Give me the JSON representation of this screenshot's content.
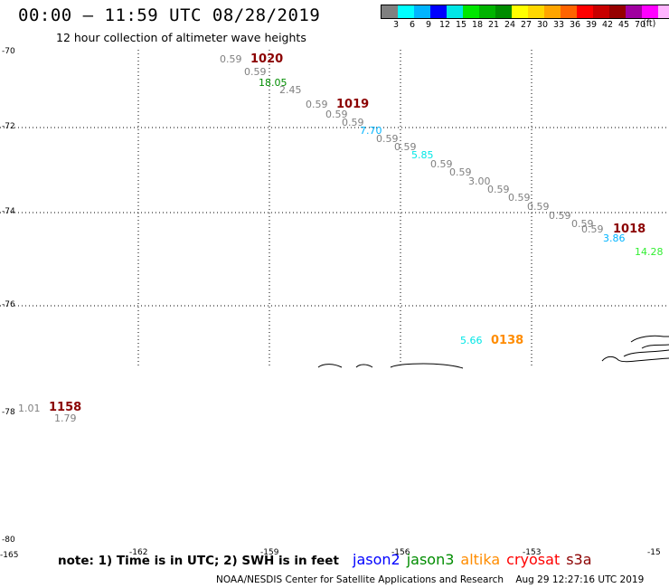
{
  "title": "00:00 – 11:59 UTC 08/28/2019",
  "subtitle": "12 hour collection of altimeter wave heights",
  "legend": {
    "unit": "(ft)",
    "colors": [
      "#808080",
      "#00ffff",
      "#00b4ff",
      "#0000ff",
      "#00e6e6",
      "#00e600",
      "#00b400",
      "#008c00",
      "#ffff00",
      "#ffd700",
      "#ffa500",
      "#ff6400",
      "#ff0000",
      "#c80000",
      "#960000",
      "#a000a0",
      "#ff00ff",
      "#ffb4ff",
      "#000000"
    ],
    "labels": [
      "3",
      "6",
      "9",
      "12",
      "15",
      "18",
      "21",
      "24",
      "27",
      "30",
      "33",
      "36",
      "39",
      "42",
      "45",
      "70"
    ]
  },
  "axes": {
    "lat_labels": [
      "-70",
      "-72",
      "-74",
      "-76",
      "-78",
      "-80"
    ],
    "lon_labels": [
      "-165",
      "-162",
      "-159",
      "-156",
      "-153",
      "-15"
    ]
  },
  "observations": [
    {
      "text": "0.59",
      "color": "#808080"
    },
    {
      "text": "0.59",
      "color": "#808080"
    },
    {
      "text": "18.05",
      "color": "#008c00"
    },
    {
      "text": "2.45",
      "color": "#808080"
    },
    {
      "text": "0.59",
      "color": "#808080"
    },
    {
      "text": "0.59",
      "color": "#808080"
    },
    {
      "text": "0.59",
      "color": "#808080"
    },
    {
      "text": "7.70",
      "color": "#00b4ff"
    },
    {
      "text": "0.59",
      "color": "#808080"
    },
    {
      "text": "0.59",
      "color": "#808080"
    },
    {
      "text": "5.85",
      "color": "#00e6e6"
    },
    {
      "text": "0.59",
      "color": "#808080"
    },
    {
      "text": "0.59",
      "color": "#808080"
    },
    {
      "text": "3.00",
      "color": "#808080"
    },
    {
      "text": "0.59",
      "color": "#808080"
    },
    {
      "text": "0.59",
      "color": "#808080"
    },
    {
      "text": "0.59",
      "color": "#808080"
    },
    {
      "text": "0.59",
      "color": "#808080"
    },
    {
      "text": "0.59",
      "color": "#808080"
    },
    {
      "text": "0.59",
      "color": "#808080"
    },
    {
      "text": "3.86",
      "color": "#00b4ff"
    },
    {
      "text": "14.28",
      "color": "#33ee33"
    },
    {
      "text": "5.66",
      "color": "#00e6e6"
    },
    {
      "text": "1.01",
      "color": "#808080"
    },
    {
      "text": "1.79",
      "color": "#808080"
    }
  ],
  "time_labels": [
    {
      "text": "1020",
      "color": "#8b0000"
    },
    {
      "text": "1019",
      "color": "#8b0000"
    },
    {
      "text": "1018",
      "color": "#8b0000"
    },
    {
      "text": "0138",
      "color": "#ff8c00"
    },
    {
      "text": "1158",
      "color": "#8b0000"
    }
  ],
  "note": "note: 1) Time is in UTC; 2) SWH is in feet",
  "satellites": [
    {
      "name": "jason2",
      "color": "#0000ff"
    },
    {
      "name": "jason3",
      "color": "#008c00"
    },
    {
      "name": "altika",
      "color": "#ff8c00"
    },
    {
      "name": "cryosat",
      "color": "#ff0000"
    },
    {
      "name": "s3a",
      "color": "#8b0000"
    }
  ],
  "footer": "NOAA/NESDIS Center for Satellite Applications and Research    Aug 29 12:27:16 UTC 2019"
}
